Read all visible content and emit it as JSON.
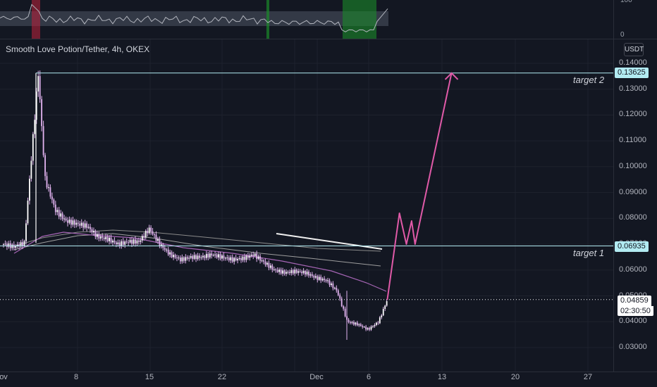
{
  "header": {
    "symbol": "Smooth Love Potion/Tether, 4h, OKEX",
    "currency_button": "USDT"
  },
  "oscillator": {
    "tick_labels": [
      "100",
      "0"
    ]
  },
  "price_axis": {
    "ticks": [
      "0.14000",
      "0.13000",
      "0.12000",
      "0.11000",
      "0.10000",
      "0.09000",
      "0.08000",
      "0.07000",
      "0.06000",
      "0.05000",
      "0.04000",
      "0.03000"
    ]
  },
  "time_axis": {
    "ticks": [
      "ov",
      "8",
      "15",
      "22",
      "Dec",
      "6",
      "13",
      "20",
      "27"
    ]
  },
  "annotations": {
    "target2_label": "target 2",
    "target1_label": "target 1"
  },
  "price_labels": {
    "target2": "0.13625",
    "target1": "0.06935",
    "last_price": "0.04859",
    "countdown": "02:30:50"
  },
  "colors": {
    "background": "#131722",
    "candles": "#e2b3f0",
    "target_lines": "#b2ebf2",
    "projection": "#e05aa8",
    "ma_fast": "#a665b5",
    "ma_slow": "#9e9e9e",
    "oscillator_line": "#b2b5be",
    "osc_red_zone": "#b2223b",
    "osc_green_zone": "#1b8a2a",
    "last_price_line": "#ffffff"
  },
  "chart_data": {
    "type": "candlestick",
    "timeframe": "4h",
    "y_axis": {
      "ylim": [
        0.025,
        0.145
      ],
      "scale": "linear"
    },
    "key_levels": [
      {
        "label": "target 2",
        "price": 0.13625
      },
      {
        "label": "target 1",
        "price": 0.06935
      },
      {
        "label": "last",
        "price": 0.04859
      }
    ],
    "close_path": [
      [
        "Nov 1",
        0.07
      ],
      [
        "Nov 2",
        0.069
      ],
      [
        "Nov 3",
        0.0705
      ],
      [
        "Nov 4 08:00",
        0.1362
      ],
      [
        "Nov 4 16:00",
        0.115
      ],
      [
        "Nov 5",
        0.095
      ],
      [
        "Nov 6",
        0.083
      ],
      [
        "Nov 7",
        0.079
      ],
      [
        "Nov 8",
        0.078
      ],
      [
        "Nov 9",
        0.077
      ],
      [
        "Nov 10",
        0.073
      ],
      [
        "Nov 11",
        0.072
      ],
      [
        "Nov 12",
        0.07
      ],
      [
        "Nov 13",
        0.071
      ],
      [
        "Nov 14",
        0.071
      ],
      [
        "Nov 15",
        0.076
      ],
      [
        "Nov 16",
        0.07
      ],
      [
        "Nov 17",
        0.066
      ],
      [
        "Nov 18",
        0.064
      ],
      [
        "Nov 19",
        0.065
      ],
      [
        "Nov 20",
        0.065
      ],
      [
        "Nov 21",
        0.066
      ],
      [
        "Nov 22",
        0.065
      ],
      [
        "Nov 23",
        0.064
      ],
      [
        "Nov 24",
        0.0645
      ],
      [
        "Nov 25",
        0.066
      ],
      [
        "Nov 26",
        0.063
      ],
      [
        "Nov 27",
        0.06
      ],
      [
        "Nov 28",
        0.059
      ],
      [
        "Nov 29",
        0.0595
      ],
      [
        "Nov 30",
        0.059
      ],
      [
        "Dec 1",
        0.057
      ],
      [
        "Dec 2",
        0.056
      ],
      [
        "Dec 3",
        0.052
      ],
      [
        "Dec 4",
        0.04
      ],
      [
        "Dec 5",
        0.039
      ],
      [
        "Dec 6",
        0.037
      ],
      [
        "Dec 7",
        0.04
      ],
      [
        "Dec 7 20:00",
        0.04859
      ]
    ],
    "projection_path": [
      [
        "Dec 7 20:00",
        0.0485
      ],
      [
        "Dec 9",
        0.082
      ],
      [
        "Dec 9 16:00",
        0.07
      ],
      [
        "Dec 10 04:00",
        0.079
      ],
      [
        "Dec 10 12:00",
        0.07
      ],
      [
        "Dec 14",
        0.1362
      ]
    ],
    "overlay_lines": [
      {
        "name": "",
        "kind": "moving average",
        "color": "#a665b5"
      },
      {
        "name": "",
        "kind": "moving average",
        "color": "#9e9e9e"
      }
    ],
    "xlabel": "",
    "ylabel": ""
  }
}
